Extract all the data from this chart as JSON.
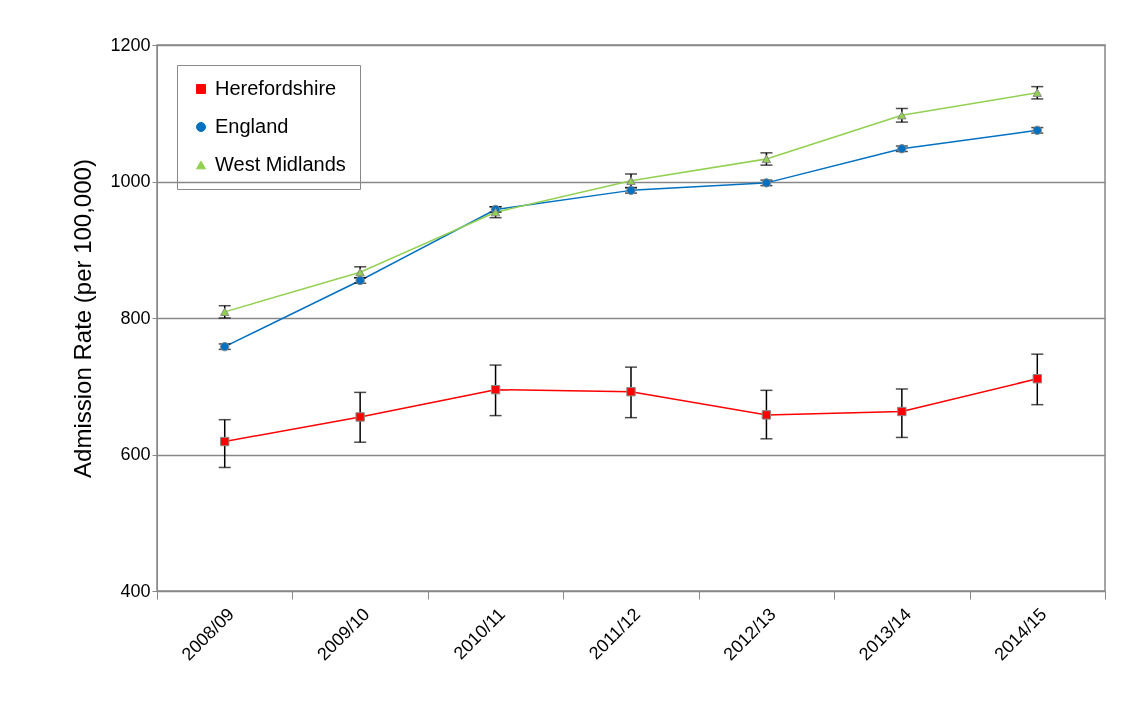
{
  "chart_data": {
    "type": "line",
    "ylabel": "Admission Rate (per 100,000)",
    "categories": [
      "2008/09",
      "2009/10",
      "2010/11",
      "2011/12",
      "2012/13",
      "2013/14",
      "2014/15"
    ],
    "series": [
      {
        "name": "Herefordshire",
        "color": "#ff0000",
        "marker": "square",
        "values": [
          619,
          655,
          695,
          692,
          658,
          663,
          711
        ],
        "errors": [
          [
            581,
            651
          ],
          [
            618,
            691
          ],
          [
            657,
            731
          ],
          [
            654,
            728
          ],
          [
            623,
            694
          ],
          [
            625,
            696
          ],
          [
            673,
            747
          ]
        ]
      },
      {
        "name": "England",
        "color": "#0070c0",
        "marker": "circle",
        "values": [
          758,
          855,
          959,
          987,
          998,
          1048,
          1075
        ],
        "errors": [
          4,
          4,
          4,
          4,
          4,
          4,
          4
        ]
      },
      {
        "name": "West Midlands",
        "color": "#92d050",
        "marker": "triangle",
        "values": [
          809,
          867,
          955,
          1001,
          1033,
          1097,
          1130
        ],
        "errors": [
          9,
          8,
          8,
          10,
          9,
          10,
          9
        ]
      }
    ],
    "ylim": [
      400,
      1200
    ],
    "yticks": [
      400,
      600,
      800,
      1000,
      1200
    ],
    "grid": "y",
    "legend": "top left",
    "line_style": "solid"
  }
}
